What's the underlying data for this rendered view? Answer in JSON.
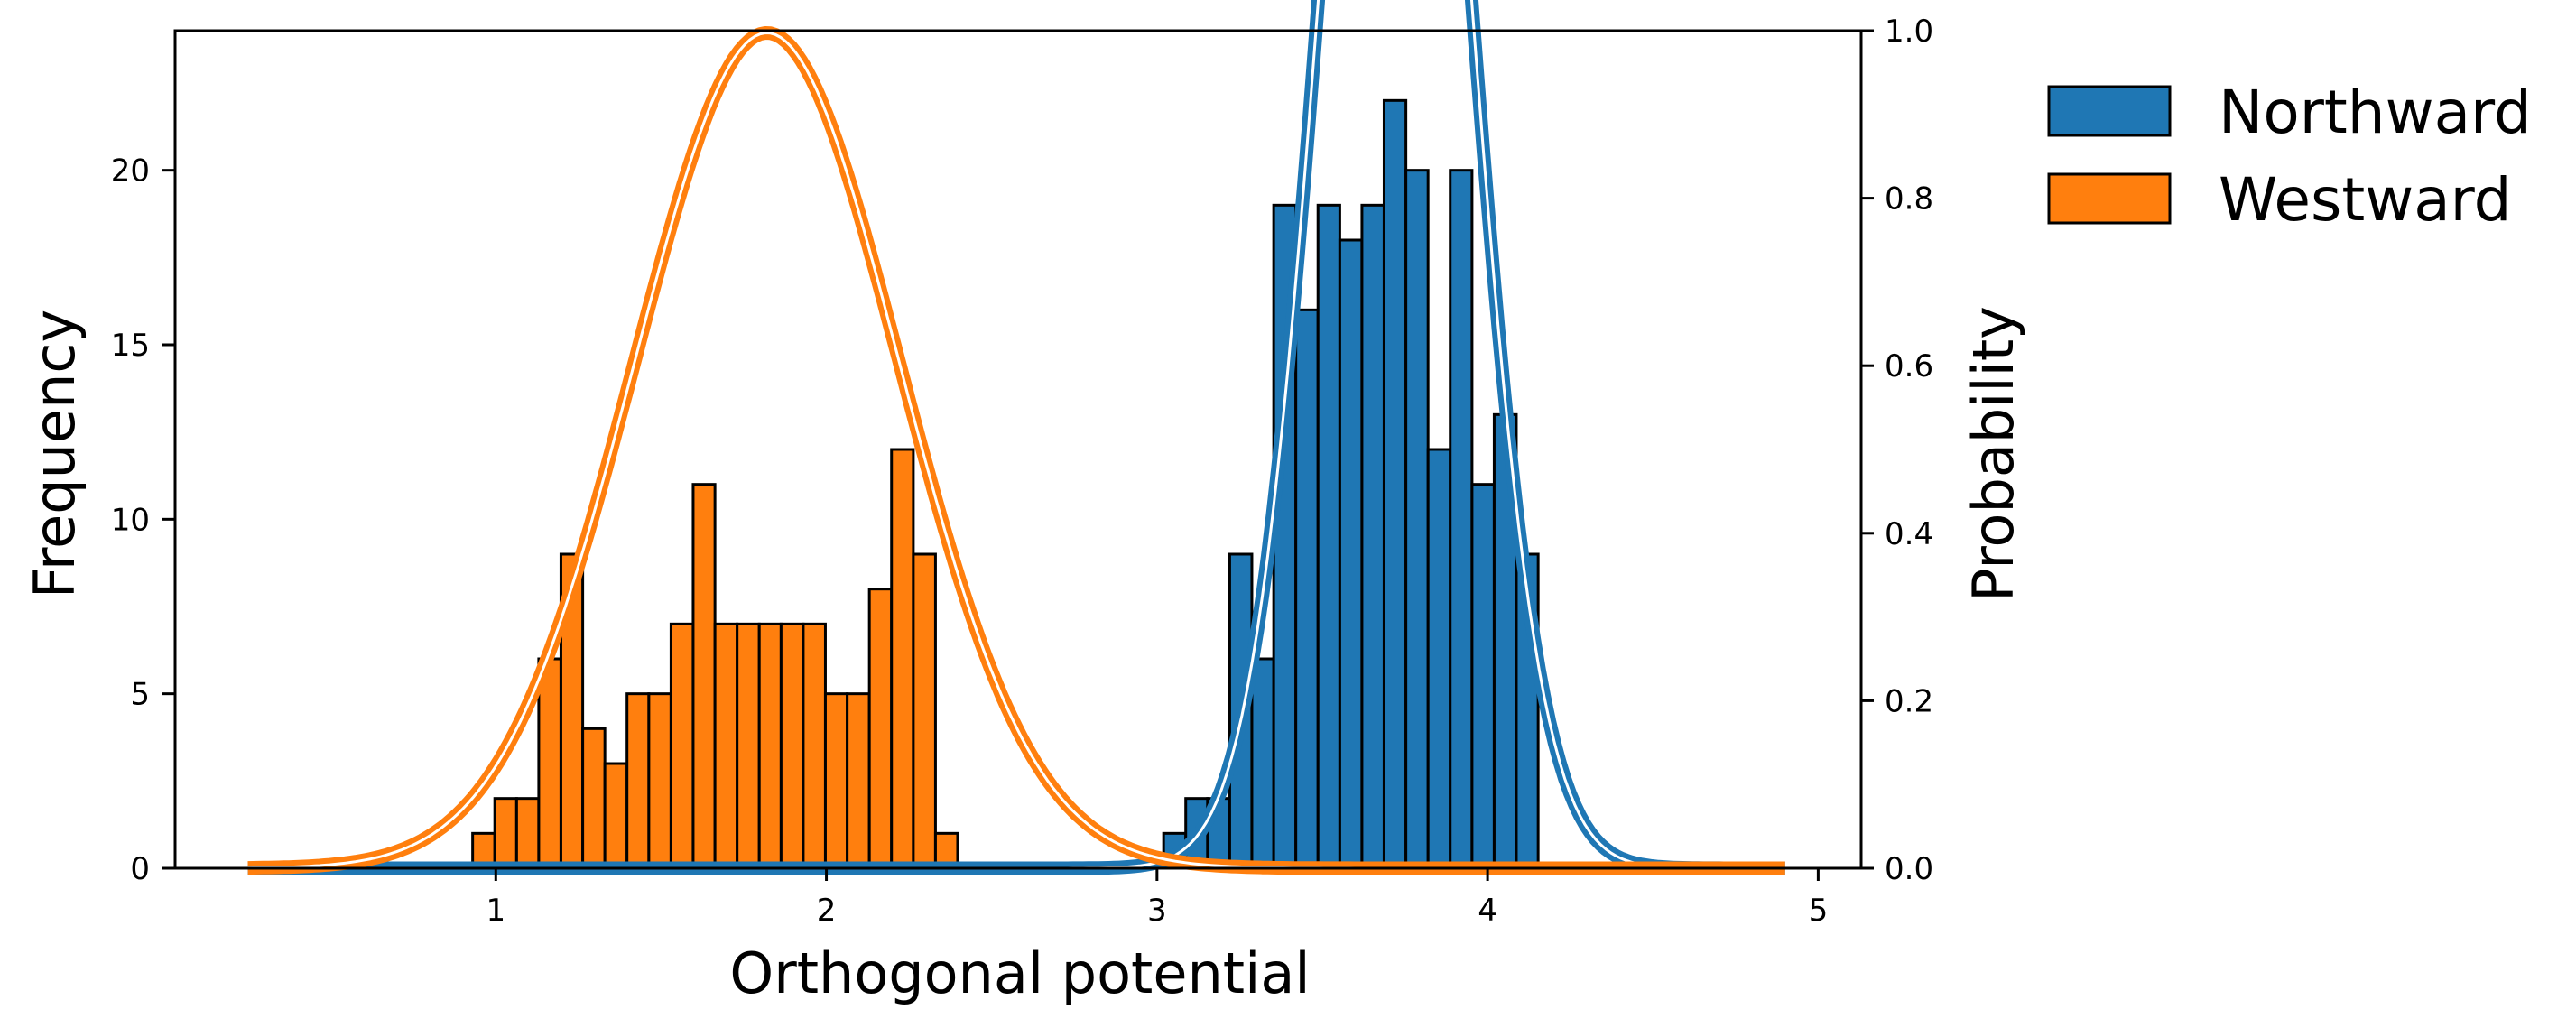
{
  "chart_data": {
    "type": "bar",
    "xlabel": "Orthogonal potential",
    "ylabel": "Frequency",
    "ylabel_right": "Probability",
    "xlim": [
      0.03,
      5.13
    ],
    "ylim": [
      0,
      24
    ],
    "ylim_right": [
      0,
      1.0
    ],
    "x_ticks": [
      1,
      2,
      3,
      4,
      5
    ],
    "y_ticks": [
      0,
      5,
      10,
      15,
      20
    ],
    "y_ticks_right": [
      0.0,
      0.2,
      0.4,
      0.6,
      0.8,
      1.0
    ],
    "grid": false,
    "legend_position": "outside-top-right",
    "series": [
      {
        "name": "Northward",
        "color": "#1f77b4",
        "bin_edges": [
          3.02,
          3.087,
          3.153,
          3.22,
          3.287,
          3.353,
          3.42,
          3.487,
          3.553,
          3.62,
          3.687,
          3.753,
          3.82,
          3.887,
          3.953,
          4.02,
          4.087,
          4.153,
          4.22
        ],
        "counts": [
          1,
          2,
          2,
          9,
          6,
          19,
          16,
          19,
          18,
          19,
          22,
          20,
          12,
          20,
          11,
          13,
          9,
          0
        ],
        "fit_curve": {
          "type": "normal_pdf",
          "mean": 3.72,
          "std": 0.215,
          "xrange": [
            0.25,
            4.9
          ]
        }
      },
      {
        "name": "Westward",
        "color": "#ff7f0e",
        "bin_edges": [
          0.93,
          0.997,
          1.063,
          1.13,
          1.197,
          1.263,
          1.33,
          1.397,
          1.463,
          1.53,
          1.597,
          1.663,
          1.73,
          1.797,
          1.863,
          1.93,
          1.997,
          2.063,
          2.13,
          2.197,
          2.263,
          2.33,
          2.397,
          2.463
        ],
        "counts": [
          1,
          2,
          2,
          6,
          9,
          4,
          3,
          5,
          5,
          7,
          11,
          7,
          7,
          7,
          7,
          7,
          5,
          5,
          8,
          12,
          9,
          1,
          0
        ],
        "fit_curve": {
          "type": "normal_pdf",
          "mean": 1.82,
          "std": 0.4,
          "xrange": [
            0.25,
            4.9
          ]
        }
      }
    ]
  }
}
